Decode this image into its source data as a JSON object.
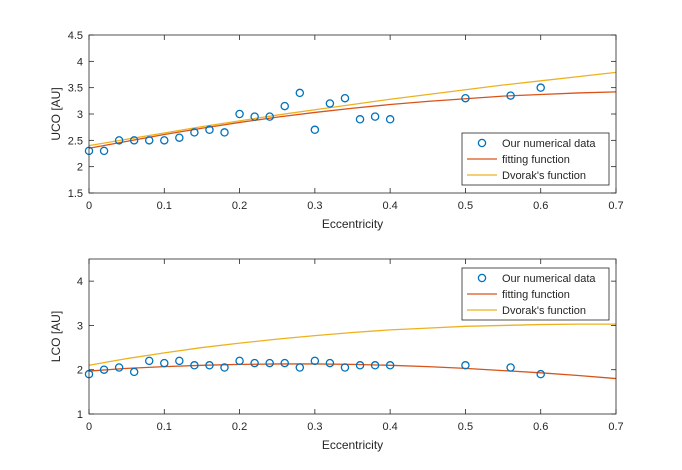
{
  "chart_data": [
    {
      "type": "scatter",
      "xlabel": "Eccentricity",
      "ylabel": "UCO [AU]",
      "xlim": [
        0,
        0.7
      ],
      "ylim": [
        1.5,
        4.5
      ],
      "xticks": [
        0,
        0.1,
        0.2,
        0.3,
        0.4,
        0.5,
        0.6,
        0.7
      ],
      "xtick_labels": [
        "0",
        "0.1",
        "0.2",
        "0.3",
        "0.4",
        "0.5",
        "0.6",
        "0.7"
      ],
      "yticks": [
        1.5,
        2,
        2.5,
        3,
        3.5,
        4,
        4.5
      ],
      "ytick_labels": [
        "1.5",
        "2",
        "2.5",
        "3",
        "3.5",
        "4",
        "4.5"
      ],
      "legend_position": "bottom-right",
      "grid": false,
      "series": [
        {
          "name": "Our numerical data",
          "kind": "markers",
          "color": "#0072BD",
          "x": [
            0,
            0.02,
            0.04,
            0.06,
            0.08,
            0.1,
            0.12,
            0.14,
            0.16,
            0.18,
            0.2,
            0.22,
            0.24,
            0.26,
            0.28,
            0.3,
            0.32,
            0.34,
            0.36,
            0.38,
            0.4,
            0.5,
            0.56,
            0.6
          ],
          "y": [
            2.3,
            2.3,
            2.5,
            2.5,
            2.5,
            2.5,
            2.55,
            2.65,
            2.7,
            2.65,
            3.0,
            2.95,
            2.95,
            3.15,
            3.4,
            2.7,
            3.2,
            3.3,
            2.9,
            2.95,
            2.9,
            3.3,
            3.35,
            3.5
          ]
        },
        {
          "name": "fitting function",
          "kind": "line",
          "color": "#D95319",
          "x": [
            0,
            0.05,
            0.1,
            0.15,
            0.2,
            0.25,
            0.3,
            0.35,
            0.4,
            0.45,
            0.5,
            0.55,
            0.6,
            0.65,
            0.7
          ],
          "y": [
            2.35,
            2.48,
            2.61,
            2.73,
            2.84,
            2.94,
            3.03,
            3.11,
            3.18,
            3.24,
            3.29,
            3.34,
            3.37,
            3.4,
            3.42
          ]
        },
        {
          "name": "Dvorak's function",
          "kind": "line",
          "color": "#EDB120",
          "x": [
            0,
            0.05,
            0.1,
            0.15,
            0.2,
            0.25,
            0.3,
            0.35,
            0.4,
            0.45,
            0.5,
            0.55,
            0.6,
            0.65,
            0.7
          ],
          "y": [
            2.4,
            2.52,
            2.64,
            2.76,
            2.87,
            2.98,
            3.08,
            3.18,
            3.28,
            3.37,
            3.46,
            3.55,
            3.63,
            3.71,
            3.79
          ]
        }
      ]
    },
    {
      "type": "scatter",
      "xlabel": "Eccentricity",
      "ylabel": "LCO [AU]",
      "xlim": [
        0,
        0.7
      ],
      "ylim": [
        1,
        4.5
      ],
      "xticks": [
        0,
        0.1,
        0.2,
        0.3,
        0.4,
        0.5,
        0.6,
        0.7
      ],
      "xtick_labels": [
        "0",
        "0.1",
        "0.2",
        "0.3",
        "0.4",
        "0.5",
        "0.6",
        "0.7"
      ],
      "yticks": [
        1,
        2,
        3,
        4
      ],
      "ytick_labels": [
        "1",
        "2",
        "3",
        "4"
      ],
      "legend_position": "top-right",
      "grid": false,
      "series": [
        {
          "name": "Our numerical data",
          "kind": "markers",
          "color": "#0072BD",
          "x": [
            0,
            0.02,
            0.04,
            0.06,
            0.08,
            0.1,
            0.12,
            0.14,
            0.16,
            0.18,
            0.2,
            0.22,
            0.24,
            0.26,
            0.28,
            0.3,
            0.32,
            0.34,
            0.36,
            0.38,
            0.4,
            0.5,
            0.56,
            0.6
          ],
          "y": [
            1.9,
            2.0,
            2.05,
            1.95,
            2.2,
            2.15,
            2.2,
            2.1,
            2.1,
            2.05,
            2.2,
            2.15,
            2.15,
            2.15,
            2.05,
            2.2,
            2.15,
            2.05,
            2.1,
            2.1,
            2.1,
            2.1,
            2.05,
            1.9
          ]
        },
        {
          "name": "fitting function",
          "kind": "line",
          "color": "#D95319",
          "x": [
            0,
            0.05,
            0.1,
            0.15,
            0.2,
            0.25,
            0.3,
            0.35,
            0.4,
            0.45,
            0.5,
            0.55,
            0.6,
            0.65,
            0.7
          ],
          "y": [
            1.97,
            2.03,
            2.07,
            2.1,
            2.12,
            2.13,
            2.13,
            2.12,
            2.1,
            2.07,
            2.03,
            1.98,
            1.93,
            1.87,
            1.8
          ]
        },
        {
          "name": "Dvorak's function",
          "kind": "line",
          "color": "#EDB120",
          "x": [
            0,
            0.05,
            0.1,
            0.15,
            0.2,
            0.25,
            0.3,
            0.35,
            0.4,
            0.45,
            0.5,
            0.55,
            0.6,
            0.65,
            0.7
          ],
          "y": [
            2.1,
            2.25,
            2.38,
            2.5,
            2.6,
            2.69,
            2.77,
            2.84,
            2.9,
            2.94,
            2.98,
            3.0,
            3.02,
            3.03,
            3.03
          ]
        }
      ]
    }
  ]
}
